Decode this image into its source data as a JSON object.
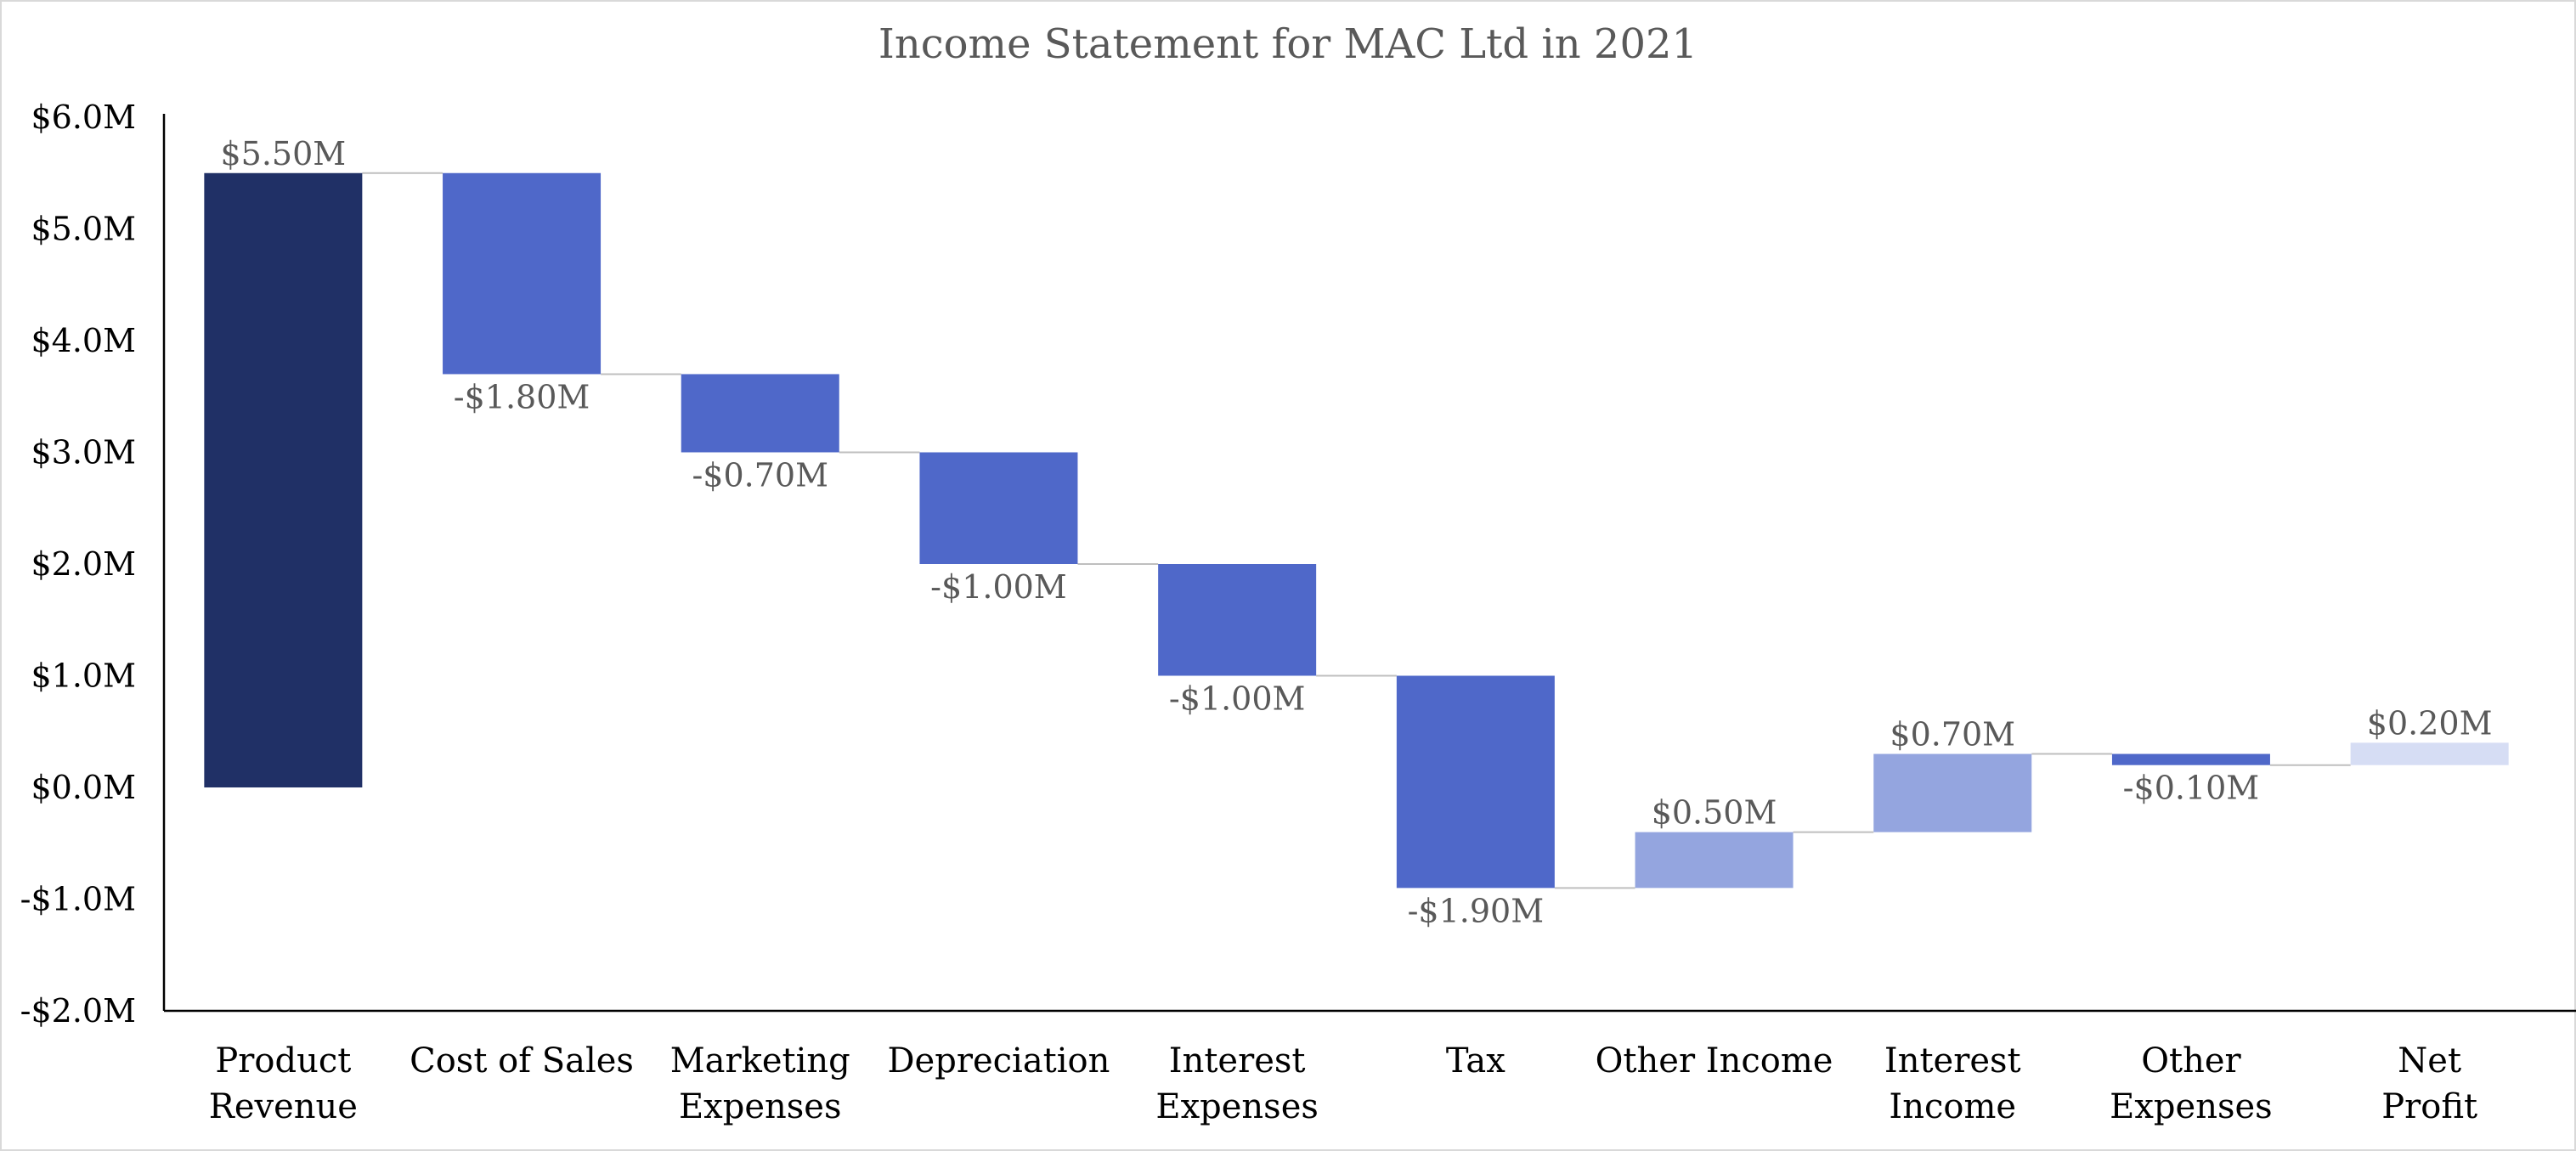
{
  "chart_data": {
    "type": "waterfall",
    "title": "Income Statement for MAC Ltd in 2021",
    "xlabel": "",
    "ylabel": "",
    "ylim": [
      -2,
      6
    ],
    "y_ticks": [
      6,
      5,
      4,
      3,
      2,
      1,
      0,
      -1,
      -2
    ],
    "y_tick_labels": [
      "$6.0M",
      "$5.0M",
      "$4.0M",
      "$3.0M",
      "$2.0M",
      "$1.0M",
      "$0.0M",
      "-$1.0M",
      "-$2.0M"
    ],
    "grid": false,
    "legend": "none",
    "categories": [
      [
        "Product",
        "Revenue"
      ],
      [
        "Cost of Sales"
      ],
      [
        "Marketing",
        "Expenses"
      ],
      [
        "Depreciation"
      ],
      [
        "Interest",
        "Expenses"
      ],
      [
        "Tax"
      ],
      [
        "Other Income"
      ],
      [
        "Interest",
        "Income"
      ],
      [
        "Other",
        "Expenses"
      ],
      [
        "Net",
        "Profit"
      ]
    ],
    "values": [
      5.5,
      -1.8,
      -0.7,
      -1.0,
      -1.0,
      -1.9,
      0.5,
      0.7,
      -0.1,
      0.2
    ],
    "bar_kinds": [
      "start",
      "decrease",
      "decrease",
      "decrease",
      "decrease",
      "decrease",
      "increase",
      "increase",
      "decrease",
      "total"
    ],
    "data_labels": [
      "$5.50M",
      "-$1.80M",
      "-$0.70M",
      "-$1.00M",
      "-$1.00M",
      "-$1.90M",
      "$0.50M",
      "$0.70M",
      "-$0.10M",
      "$0.20M"
    ],
    "colors": {
      "start": "#203066",
      "decrease": "#4f68c9",
      "increase": "#94a5df",
      "total": "#d6ddf4",
      "connector": "#bfbfbf",
      "axis": "#000000"
    }
  }
}
